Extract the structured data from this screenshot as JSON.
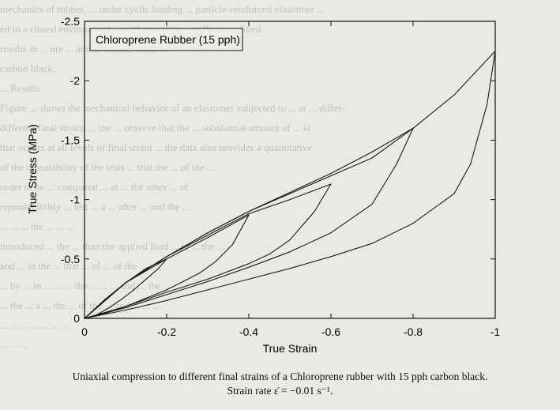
{
  "chart_data": {
    "type": "line",
    "title": "Chloroprene Rubber (15 pph)",
    "xlabel": "True Strain",
    "ylabel": "True Stress (MPa)",
    "xlim": [
      0,
      -1
    ],
    "ylim": [
      0,
      -2.5
    ],
    "x_ticks": [
      "0",
      "-0.2",
      "-0.4",
      "-0.6",
      "-0.8",
      "-1"
    ],
    "y_ticks": [
      "0",
      "-0.5",
      "-1",
      "-1.5",
      "-2",
      "-2.5"
    ],
    "x_tick_values": [
      0,
      -0.2,
      -0.4,
      -0.6,
      -0.8,
      -1
    ],
    "y_tick_values": [
      0,
      -0.5,
      -1,
      -1.5,
      -2,
      -2.5
    ],
    "legend": "none",
    "grid": false,
    "series": [
      {
        "final_strain": -0.2,
        "x": [
          0,
          -0.05,
          -0.1,
          -0.15,
          -0.2,
          -0.18,
          -0.15,
          -0.12,
          -0.09,
          -0.06,
          -0.03,
          0
        ],
        "y": [
          0,
          -0.16,
          -0.3,
          -0.42,
          -0.5,
          -0.42,
          -0.33,
          -0.24,
          -0.16,
          -0.09,
          -0.03,
          0
        ]
      },
      {
        "final_strain": -0.4,
        "x": [
          0,
          -0.1,
          -0.2,
          -0.3,
          -0.4,
          -0.36,
          -0.32,
          -0.28,
          -0.24,
          -0.2,
          -0.15,
          -0.1,
          -0.05,
          0
        ],
        "y": [
          0,
          -0.3,
          -0.5,
          -0.68,
          -0.87,
          -0.62,
          -0.48,
          -0.38,
          -0.31,
          -0.24,
          -0.17,
          -0.1,
          -0.04,
          0
        ]
      },
      {
        "final_strain": -0.6,
        "x": [
          0,
          -0.1,
          -0.2,
          -0.3,
          -0.4,
          -0.5,
          -0.6,
          -0.56,
          -0.5,
          -0.45,
          -0.4,
          -0.3,
          -0.2,
          -0.1,
          0
        ],
        "y": [
          0,
          -0.3,
          -0.52,
          -0.7,
          -0.88,
          -1.0,
          -1.13,
          -0.9,
          -0.66,
          -0.54,
          -0.46,
          -0.33,
          -0.22,
          -0.1,
          0
        ]
      },
      {
        "final_strain": -0.8,
        "x": [
          0,
          -0.1,
          -0.2,
          -0.3,
          -0.4,
          -0.5,
          -0.6,
          -0.7,
          -0.8,
          -0.76,
          -0.7,
          -0.6,
          -0.5,
          -0.4,
          -0.3,
          -0.2,
          -0.1,
          0
        ],
        "y": [
          0,
          -0.3,
          -0.52,
          -0.72,
          -0.9,
          -1.05,
          -1.2,
          -1.35,
          -1.6,
          -1.3,
          -0.96,
          -0.72,
          -0.56,
          -0.43,
          -0.31,
          -0.2,
          -0.09,
          0
        ]
      },
      {
        "final_strain": -1,
        "x": [
          0,
          -0.1,
          -0.2,
          -0.3,
          -0.4,
          -0.5,
          -0.6,
          -0.7,
          -0.8,
          -0.9,
          -1,
          -0.98,
          -0.94,
          -0.9,
          -0.8,
          -0.7,
          -0.6,
          -0.5,
          -0.4,
          -0.3,
          -0.2,
          -0.1,
          0
        ],
        "y": [
          0,
          -0.3,
          -0.52,
          -0.72,
          -0.9,
          -1.06,
          -1.22,
          -1.4,
          -1.6,
          -1.88,
          -2.25,
          -1.8,
          -1.3,
          -1.05,
          -0.8,
          -0.63,
          -0.52,
          -0.42,
          -0.33,
          -0.24,
          -0.15,
          -0.07,
          0
        ]
      }
    ]
  },
  "caption": {
    "line1": "Uniaxial compression to different final strains of a Chloroprene rubber with 15 pph carbon black.",
    "line2": "Strain rate ε̇ = −0.01 s⁻¹."
  },
  "background_text": [
    "mechanics of rubber, ... under cyclic loading ... particle-reinforced elastomer ...",
    "ed in a closed environment ... rubber matrix ... stiffness ... filled",
    "results in ... ure ... and ... carbon black ...",
    "carbon black.",
    "... Results",
    "Figure ... shows the mechanical behavior of an elastomer subjected to ... at ... differ-",
    "different final strains ... the ... observe that the ... substantial amount of ... st",
    "that occurs at all levels of final strain ... the data also provides a quantitative",
    "of the repeatability of the tests ... that the ... of the ...",
    "order to be ... compared ... at ... the other ... of",
    "reproducibility ... test ... a ... after ... and the ...",
    "... ... ... the ... ... ...",
    "introduced ... the ... than the applied load ... to ... the ... ",
    "and ... in the ... that ... of ... of the ... ",
    "... by ... in ... ... ... the ... ... ... and ... the",
    "... the ... a ... the ... of the ... and ... ... ...",
    "... ... ... ... ... ... ...",
    "... ... ..."
  ]
}
